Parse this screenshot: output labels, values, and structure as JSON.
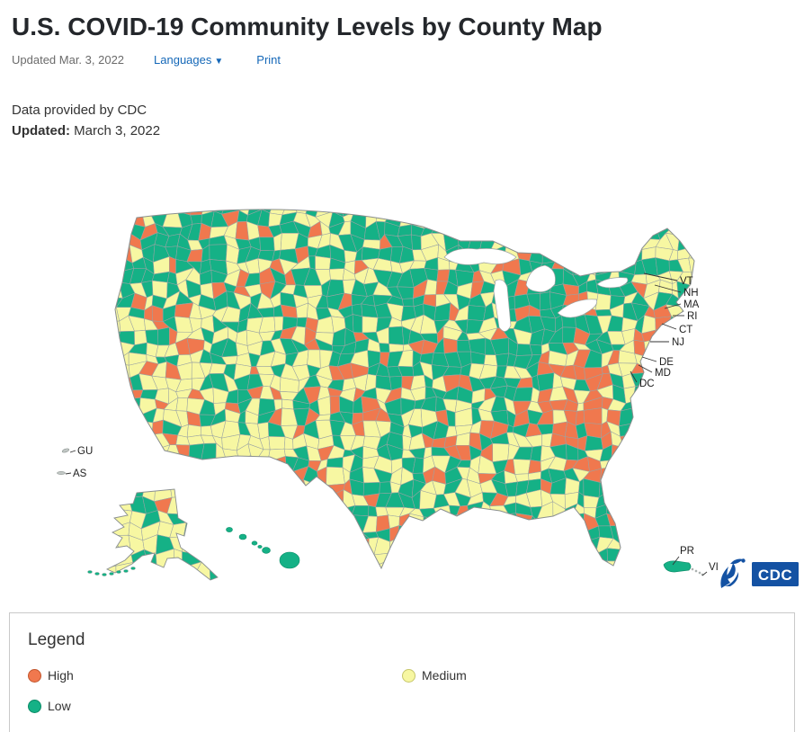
{
  "header": {
    "title": "U.S. COVID-19 Community Levels by County Map",
    "updated_short": "Updated Mar. 3, 2022",
    "languages_label": "Languages",
    "print_label": "Print",
    "data_provided": "Data provided by CDC",
    "updated_label": "Updated:",
    "updated_date": "March 3, 2022",
    "link_color": "#1568B8"
  },
  "map": {
    "type": "choropleth",
    "region": "United States counties",
    "state_labels": [
      "VT",
      "NH",
      "MA",
      "RI",
      "CT",
      "NJ",
      "DE",
      "MD",
      "DC"
    ],
    "territory_labels": [
      "GU",
      "AS",
      "PR",
      "VI"
    ],
    "levels": [
      {
        "name": "High",
        "color": "#F0784E",
        "approx_share": 0.18
      },
      {
        "name": "Medium",
        "color": "#F7F7A2",
        "approx_share": 0.4
      },
      {
        "name": "Low",
        "color": "#15B186",
        "approx_share": 0.42
      }
    ],
    "county_border_color": "#9AA3A3",
    "water_color": "#FFFFFF",
    "cdc_logo_text": "CDC",
    "logo_blue": "#1452A3",
    "hhs_logo_name": "hhs-eagle-icon"
  },
  "legend": {
    "title": "Legend",
    "items": [
      {
        "label": "High",
        "color": "#F0784E",
        "border": "#C2562E"
      },
      {
        "label": "Medium",
        "color": "#F7F7A2",
        "border": "#C6C66A"
      },
      {
        "label": "Low",
        "color": "#15B186",
        "border": "#0B8A66"
      }
    ]
  }
}
